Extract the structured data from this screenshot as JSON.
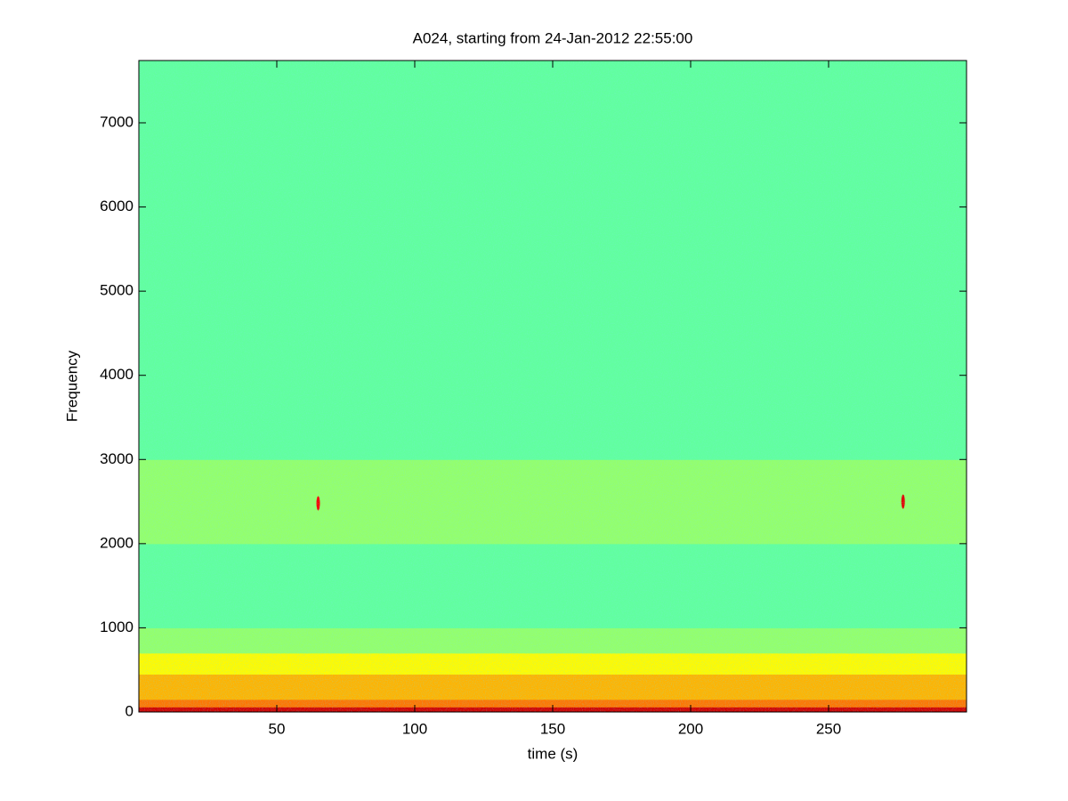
{
  "chart_data": {
    "type": "spectrogram",
    "title": "A024, starting from 24-Jan-2012 22:55:00",
    "xlabel": "time (s)",
    "ylabel": "Frequency",
    "xlim": [
      0,
      300
    ],
    "ylim": [
      0,
      7740
    ],
    "xticks": [
      50,
      100,
      150,
      200,
      250
    ],
    "yticks": [
      0,
      1000,
      2000,
      3000,
      4000,
      5000,
      6000,
      7000
    ],
    "bands": [
      0,
      60,
      150,
      450,
      700,
      1000,
      2000,
      3000,
      7740
    ],
    "levels": [
      0.92,
      0.76,
      0.7,
      0.63,
      0.52,
      0.47,
      0.52,
      0.47
    ],
    "spots": [
      {
        "x": 65,
        "y": 2480,
        "level": 0.88
      },
      {
        "x": 277,
        "y": 2500,
        "level": 0.9
      }
    ]
  }
}
